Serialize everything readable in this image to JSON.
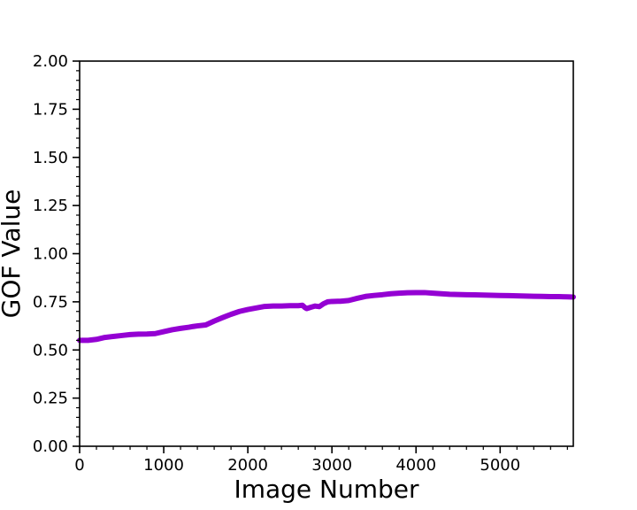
{
  "chart_data": {
    "type": "line",
    "title": "",
    "xlabel": "Image Number",
    "ylabel": "GOF Value",
    "xlim": [
      0,
      5870
    ],
    "ylim": [
      0.0,
      2.0
    ],
    "x_ticks": [
      0,
      1000,
      2000,
      3000,
      4000,
      5000
    ],
    "x_tick_labels": [
      "0",
      "1000",
      "2000",
      "3000",
      "4000",
      "5000"
    ],
    "y_ticks": [
      0.0,
      0.25,
      0.5,
      0.75,
      1.0,
      1.25,
      1.5,
      1.75,
      2.0
    ],
    "y_tick_labels": [
      "0.00",
      "0.25",
      "0.50",
      "0.75",
      "1.00",
      "1.25",
      "1.50",
      "1.75",
      "2.00"
    ],
    "grid": false,
    "line_color": "#9400d3",
    "series": [
      {
        "x": [
          0,
          100,
          200,
          300,
          400,
          500,
          600,
          700,
          800,
          900,
          1000,
          1100,
          1200,
          1300,
          1350,
          1400,
          1500,
          1600,
          1700,
          1800,
          1900,
          2000,
          2100,
          2200,
          2300,
          2400,
          2500,
          2600,
          2650,
          2680,
          2700,
          2750,
          2800,
          2850,
          2900,
          2950,
          3000,
          3100,
          3200,
          3300,
          3400,
          3500,
          3600,
          3700,
          3800,
          3900,
          4000,
          4100,
          4200,
          4300,
          4400,
          4500,
          4600,
          4700,
          4800,
          4900,
          5000,
          5100,
          5200,
          5300,
          5400,
          5500,
          5600,
          5700,
          5800,
          5870
        ],
        "y": [
          0.55,
          0.55,
          0.555,
          0.565,
          0.57,
          0.575,
          0.58,
          0.582,
          0.583,
          0.585,
          0.595,
          0.605,
          0.612,
          0.618,
          0.622,
          0.625,
          0.63,
          0.65,
          0.668,
          0.685,
          0.7,
          0.71,
          0.718,
          0.726,
          0.728,
          0.728,
          0.73,
          0.73,
          0.732,
          0.72,
          0.715,
          0.722,
          0.728,
          0.725,
          0.74,
          0.75,
          0.752,
          0.753,
          0.757,
          0.768,
          0.778,
          0.783,
          0.787,
          0.792,
          0.795,
          0.797,
          0.798,
          0.798,
          0.795,
          0.792,
          0.789,
          0.788,
          0.787,
          0.786,
          0.785,
          0.784,
          0.783,
          0.782,
          0.781,
          0.78,
          0.779,
          0.778,
          0.777,
          0.777,
          0.776,
          0.775
        ]
      }
    ]
  }
}
